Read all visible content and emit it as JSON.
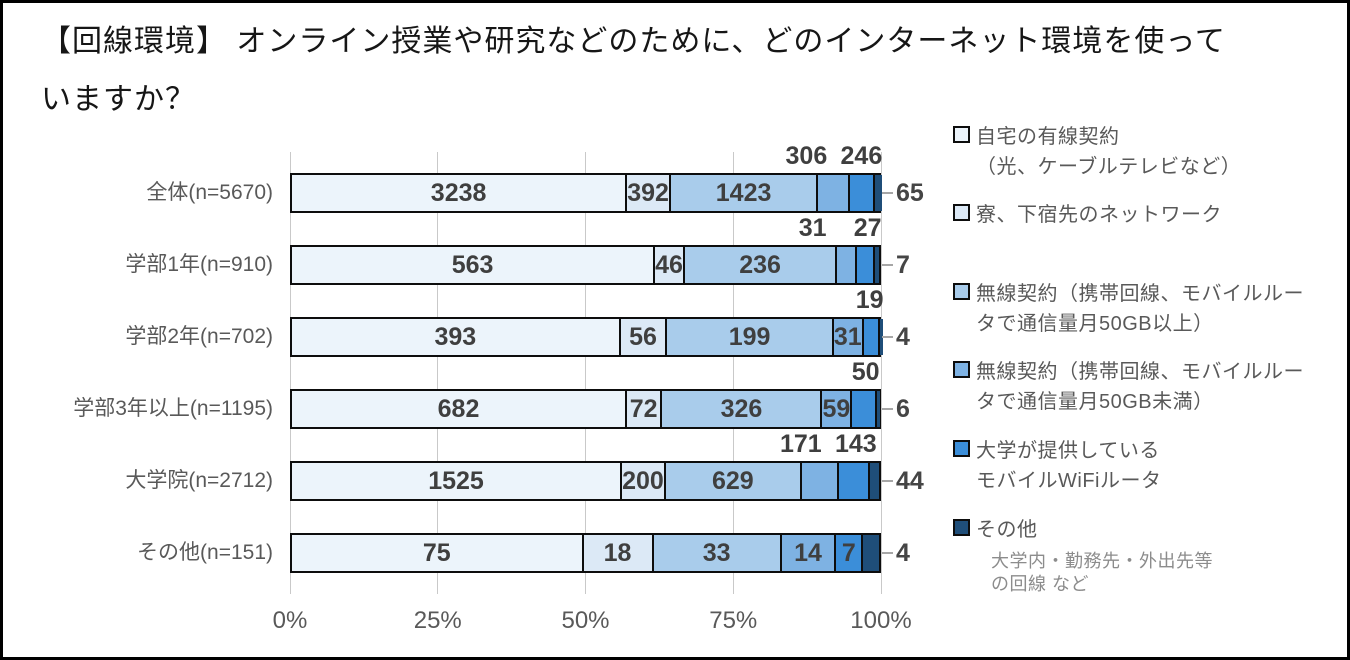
{
  "figure": {
    "title_line1": "【回線環境】 オンライン授業や研究などのために、どのインターネット環境を使って",
    "title_line2": "いますか？"
  },
  "chart_data": {
    "type": "bar",
    "stacked": true,
    "orientation": "horizontal",
    "normalized": "100%",
    "grid": true,
    "x_axis": {
      "tick_labels": [
        "0%",
        "25%",
        "50%",
        "75%",
        "100%"
      ],
      "range": [
        0,
        100
      ]
    },
    "categories": [
      "全体(n=5670)",
      "学部1年(n=910)",
      "学部2年(n=702)",
      "学部3年以上(n=1195)",
      "大学院(n=2712)",
      "その他(n=151)"
    ],
    "totals": [
      5670,
      910,
      702,
      1195,
      2712,
      151
    ],
    "series": [
      {
        "name": "自宅の有線契約（光、ケーブルテレビなど）",
        "color": "#ECF4FB",
        "values": [
          3238,
          563,
          393,
          682,
          1525,
          75
        ]
      },
      {
        "name": "寮、下宿先のネットワーク",
        "color": "#DCE9F6",
        "values": [
          392,
          46,
          56,
          72,
          200,
          18
        ]
      },
      {
        "name": "無線契約（携帯回線、モバイルルータで通信量月50GB以上）",
        "color": "#A9CCEB",
        "values": [
          1423,
          236,
          199,
          326,
          629,
          33
        ]
      },
      {
        "name": "無線契約（携帯回線、モバイルルータで通信量月50GB未満）",
        "color": "#7EB2E3",
        "values": [
          306,
          31,
          31,
          59,
          171,
          14
        ]
      },
      {
        "name": "大学が提供しているモバイルWiFiルータ",
        "color": "#3B8ED9",
        "values": [
          246,
          27,
          19,
          50,
          143,
          7
        ]
      },
      {
        "name": "その他",
        "color": "#1F4E79",
        "values": [
          65,
          7,
          4,
          6,
          44,
          4
        ]
      }
    ],
    "label_placement": [
      [
        "inside",
        "inside",
        "inside",
        "above",
        "above",
        "right"
      ],
      [
        "inside",
        "inside",
        "inside",
        "above",
        "above",
        "right"
      ],
      [
        "inside",
        "inside",
        "inside",
        "inside",
        "above",
        "right"
      ],
      [
        "inside",
        "inside",
        "inside",
        "inside",
        "above",
        "right"
      ],
      [
        "inside",
        "inside",
        "inside",
        "above",
        "above",
        "right"
      ],
      [
        "inside",
        "inside",
        "inside",
        "inside",
        "inside",
        "right"
      ]
    ]
  },
  "legend": {
    "items": [
      {
        "color": "#ECF4FB",
        "label_lines": [
          "自宅の有線契約",
          "（光、ケーブルテレビなど）"
        ]
      },
      {
        "color": "#DCE9F6",
        "label_lines": [
          "寮、下宿先のネットワーク"
        ]
      },
      {
        "color": "#A9CCEB",
        "label_lines": [
          "無線契約（携帯回線、モバイルルー",
          "タで通信量月50GB以上）"
        ]
      },
      {
        "color": "#7EB2E3",
        "label_lines": [
          "無線契約（携帯回線、モバイルルー",
          "タで通信量月50GB未満）"
        ]
      },
      {
        "color": "#3B8ED9",
        "label_lines": [
          "大学が提供している",
          "モバイルWiFiルータ"
        ]
      },
      {
        "color": "#1F4E79",
        "label_lines": [
          "その他"
        ],
        "note_lines": [
          "大学内・勤務先・外出先等",
          "の回線 など"
        ]
      }
    ]
  }
}
